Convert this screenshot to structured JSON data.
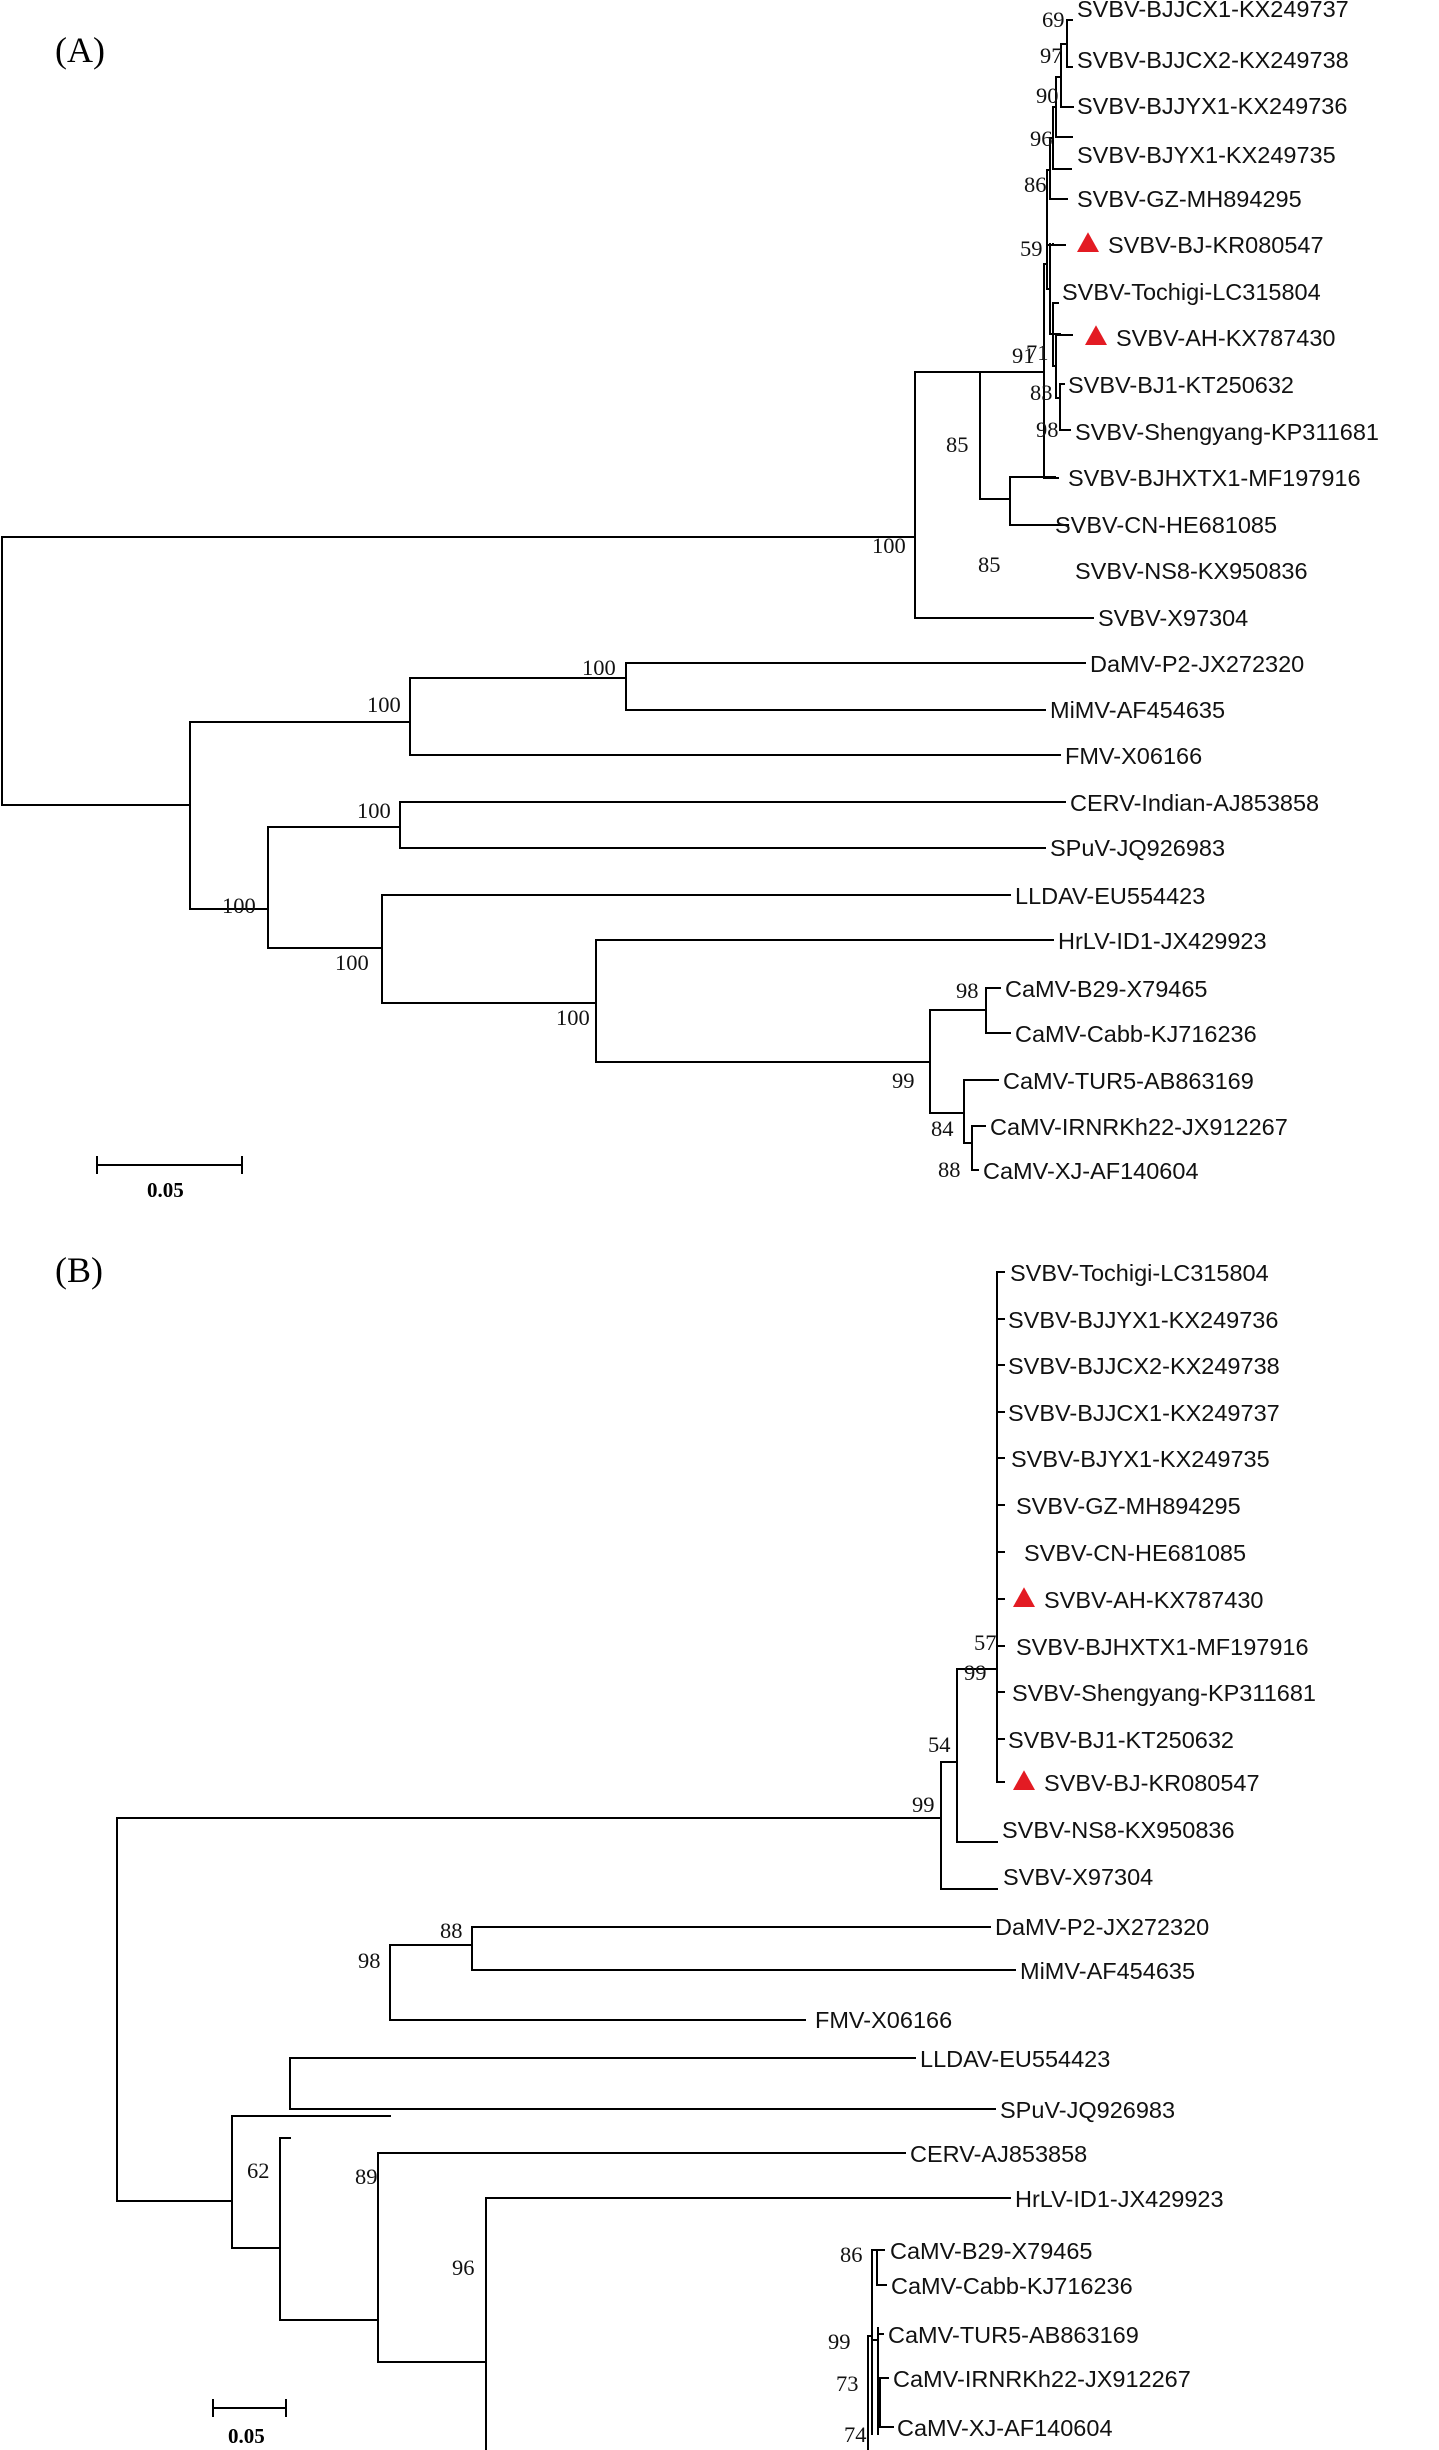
{
  "marker_color": "#e31b23",
  "panels": [
    {
      "label": "(A)",
      "scale_label": "0.05",
      "leaves": [
        {
          "id": "a1",
          "text": "SVBV-BJJCX1-KX249737"
        },
        {
          "id": "a2",
          "text": "SVBV-BJJCX2-KX249738"
        },
        {
          "id": "a3",
          "text": "SVBV-BJJYX1-KX249736"
        },
        {
          "id": "a4",
          "text": "SVBV-BJYX1-KX249735"
        },
        {
          "id": "a5",
          "text": "SVBV-GZ-MH894295"
        },
        {
          "id": "a6",
          "text": "SVBV-BJ-KR080547",
          "marked": true
        },
        {
          "id": "a7",
          "text": "SVBV-Tochigi-LC315804"
        },
        {
          "id": "a8",
          "text": "SVBV-AH-KX787430",
          "marked": true
        },
        {
          "id": "a9",
          "text": "SVBV-BJ1-KT250632"
        },
        {
          "id": "a10",
          "text": "SVBV-Shengyang-KP311681"
        },
        {
          "id": "a11",
          "text": "SVBV-BJHXTX1-MF197916"
        },
        {
          "id": "a12",
          "text": "SVBV-CN-HE681085"
        },
        {
          "id": "a13",
          "text": "SVBV-NS8-KX950836"
        },
        {
          "id": "a14",
          "text": "SVBV-X97304"
        },
        {
          "id": "a15",
          "text": "DaMV-P2-JX272320"
        },
        {
          "id": "a16",
          "text": "MiMV-AF454635"
        },
        {
          "id": "a17",
          "text": "FMV-X06166"
        },
        {
          "id": "a18",
          "text": "CERV-Indian-AJ853858"
        },
        {
          "id": "a19",
          "text": "SPuV-JQ926983"
        },
        {
          "id": "a20",
          "text": "LLDAV-EU554423"
        },
        {
          "id": "a21",
          "text": "HrLV-ID1-JX429923"
        },
        {
          "id": "a22",
          "text": "CaMV-B29-X79465"
        },
        {
          "id": "a23",
          "text": "CaMV-Cabb-KJ716236"
        },
        {
          "id": "a24",
          "text": "CaMV-TUR5-AB863169"
        },
        {
          "id": "a25",
          "text": "CaMV-IRNRKh22-JX912267"
        },
        {
          "id": "a26",
          "text": "CaMV-XJ-AF140604"
        }
      ],
      "bootstrap": [
        {
          "id": "ab1",
          "text": "69"
        },
        {
          "id": "ab2",
          "text": "97"
        },
        {
          "id": "ab3",
          "text": "90"
        },
        {
          "id": "ab4",
          "text": "96"
        },
        {
          "id": "ab5",
          "text": "86"
        },
        {
          "id": "ab6",
          "text": "59"
        },
        {
          "id": "ab7",
          "text": "91"
        },
        {
          "id": "ab8",
          "text": "71"
        },
        {
          "id": "ab9",
          "text": "83"
        },
        {
          "id": "ab10",
          "text": "98"
        },
        {
          "id": "ab11",
          "text": "85"
        },
        {
          "id": "ab12",
          "text": "100"
        },
        {
          "id": "ab13",
          "text": "85"
        },
        {
          "id": "ab14",
          "text": "100"
        },
        {
          "id": "ab15",
          "text": "100"
        },
        {
          "id": "ab16",
          "text": "100"
        },
        {
          "id": "ab17",
          "text": "100"
        },
        {
          "id": "ab18",
          "text": "100"
        },
        {
          "id": "ab19",
          "text": "100"
        },
        {
          "id": "ab20",
          "text": "98"
        },
        {
          "id": "ab21",
          "text": "99"
        },
        {
          "id": "ab22",
          "text": "84"
        },
        {
          "id": "ab23",
          "text": "88"
        }
      ]
    },
    {
      "label": "(B)",
      "scale_label": "0.05",
      "leaves": [
        {
          "id": "b1",
          "text": "SVBV-Tochigi-LC315804"
        },
        {
          "id": "b2",
          "text": "SVBV-BJJYX1-KX249736"
        },
        {
          "id": "b3",
          "text": "SVBV-BJJCX2-KX249738"
        },
        {
          "id": "b4",
          "text": "SVBV-BJJCX1-KX249737"
        },
        {
          "id": "b5",
          "text": "SVBV-BJYX1-KX249735"
        },
        {
          "id": "b6",
          "text": "SVBV-GZ-MH894295"
        },
        {
          "id": "b7",
          "text": "SVBV-CN-HE681085"
        },
        {
          "id": "b8",
          "text": "SVBV-AH-KX787430",
          "marked": true
        },
        {
          "id": "b9",
          "text": "SVBV-BJHXTX1-MF197916"
        },
        {
          "id": "b10",
          "text": "SVBV-Shengyang-KP311681"
        },
        {
          "id": "b11",
          "text": "SVBV-BJ1-KT250632"
        },
        {
          "id": "b12",
          "text": "SVBV-BJ-KR080547",
          "marked": true
        },
        {
          "id": "b13",
          "text": "SVBV-NS8-KX950836"
        },
        {
          "id": "b14",
          "text": "SVBV-X97304"
        },
        {
          "id": "b15",
          "text": "DaMV-P2-JX272320"
        },
        {
          "id": "b16",
          "text": "MiMV-AF454635"
        },
        {
          "id": "b17",
          "text": "FMV-X06166"
        },
        {
          "id": "b18",
          "text": "LLDAV-EU554423"
        },
        {
          "id": "b19",
          "text": "SPuV-JQ926983"
        },
        {
          "id": "b20",
          "text": "CERV-AJ853858"
        },
        {
          "id": "b21",
          "text": "HrLV-ID1-JX429923"
        },
        {
          "id": "b22",
          "text": "CaMV-B29-X79465"
        },
        {
          "id": "b23",
          "text": "CaMV-Cabb-KJ716236"
        },
        {
          "id": "b24",
          "text": "CaMV-TUR5-AB863169"
        },
        {
          "id": "b25",
          "text": "CaMV-IRNRKh22-JX912267"
        },
        {
          "id": "b26",
          "text": "CaMV-XJ-AF140604"
        }
      ],
      "bootstrap": [
        {
          "id": "bb1",
          "text": "57"
        },
        {
          "id": "bb2",
          "text": "99"
        },
        {
          "id": "bb3",
          "text": "54"
        },
        {
          "id": "bb4",
          "text": "99"
        },
        {
          "id": "bb5",
          "text": "88"
        },
        {
          "id": "bb6",
          "text": "98"
        },
        {
          "id": "bb7",
          "text": "62"
        },
        {
          "id": "bb8",
          "text": "89"
        },
        {
          "id": "bb9",
          "text": "96"
        },
        {
          "id": "bb10",
          "text": "86"
        },
        {
          "id": "bb11",
          "text": "99"
        },
        {
          "id": "bb12",
          "text": "73"
        },
        {
          "id": "bb13",
          "text": "74"
        }
      ]
    }
  ]
}
